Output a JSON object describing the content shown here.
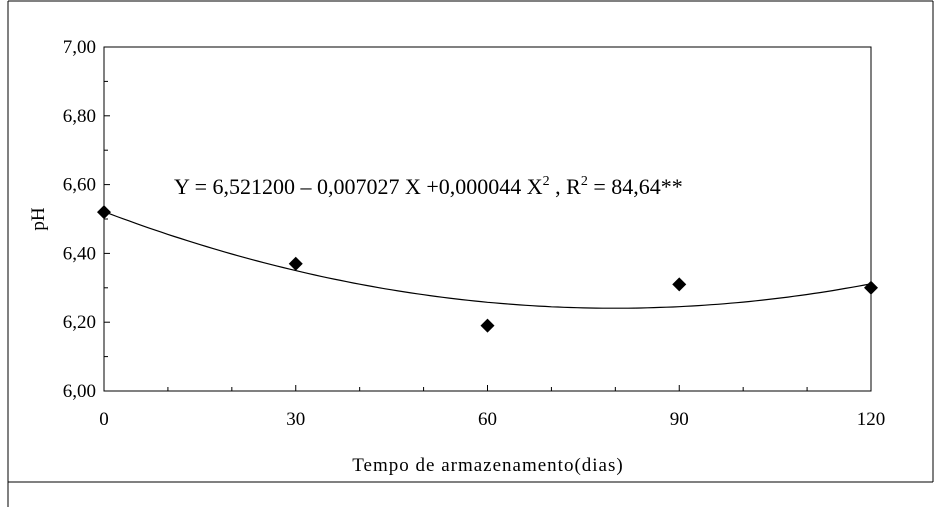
{
  "chart_data": {
    "type": "scatter",
    "xlabel": "Tempo de armazenamento(dias)",
    "ylabel": "pH",
    "xlim": [
      0,
      120
    ],
    "ylim": [
      6.0,
      7.0
    ],
    "x_ticks": [
      0,
      30,
      60,
      90,
      120
    ],
    "x_tick_labels": [
      "0",
      "30",
      "60",
      "90",
      "120"
    ],
    "y_ticks": [
      6.0,
      6.2,
      6.4,
      6.6,
      6.8,
      7.0
    ],
    "y_tick_labels": [
      "6,00",
      "6,20",
      "6,40",
      "6,60",
      "6,80",
      "7,00"
    ],
    "grid": false,
    "marker": "diamond",
    "points": [
      {
        "x": 0,
        "y": 6.52
      },
      {
        "x": 30,
        "y": 6.37
      },
      {
        "x": 60,
        "y": 6.19
      },
      {
        "x": 90,
        "y": 6.31
      },
      {
        "x": 120,
        "y": 6.3
      }
    ],
    "fit": {
      "type": "quadratic",
      "coefficients": [
        6.5212,
        -0.007027,
        4.4e-05
      ],
      "equation_parts": {
        "main": "Y = 6,521200 – 0,007027 X +0,000044 X",
        "exp1": "2",
        "mid": " , R",
        "exp2": "2",
        "tail": " = 84,64**"
      }
    }
  }
}
